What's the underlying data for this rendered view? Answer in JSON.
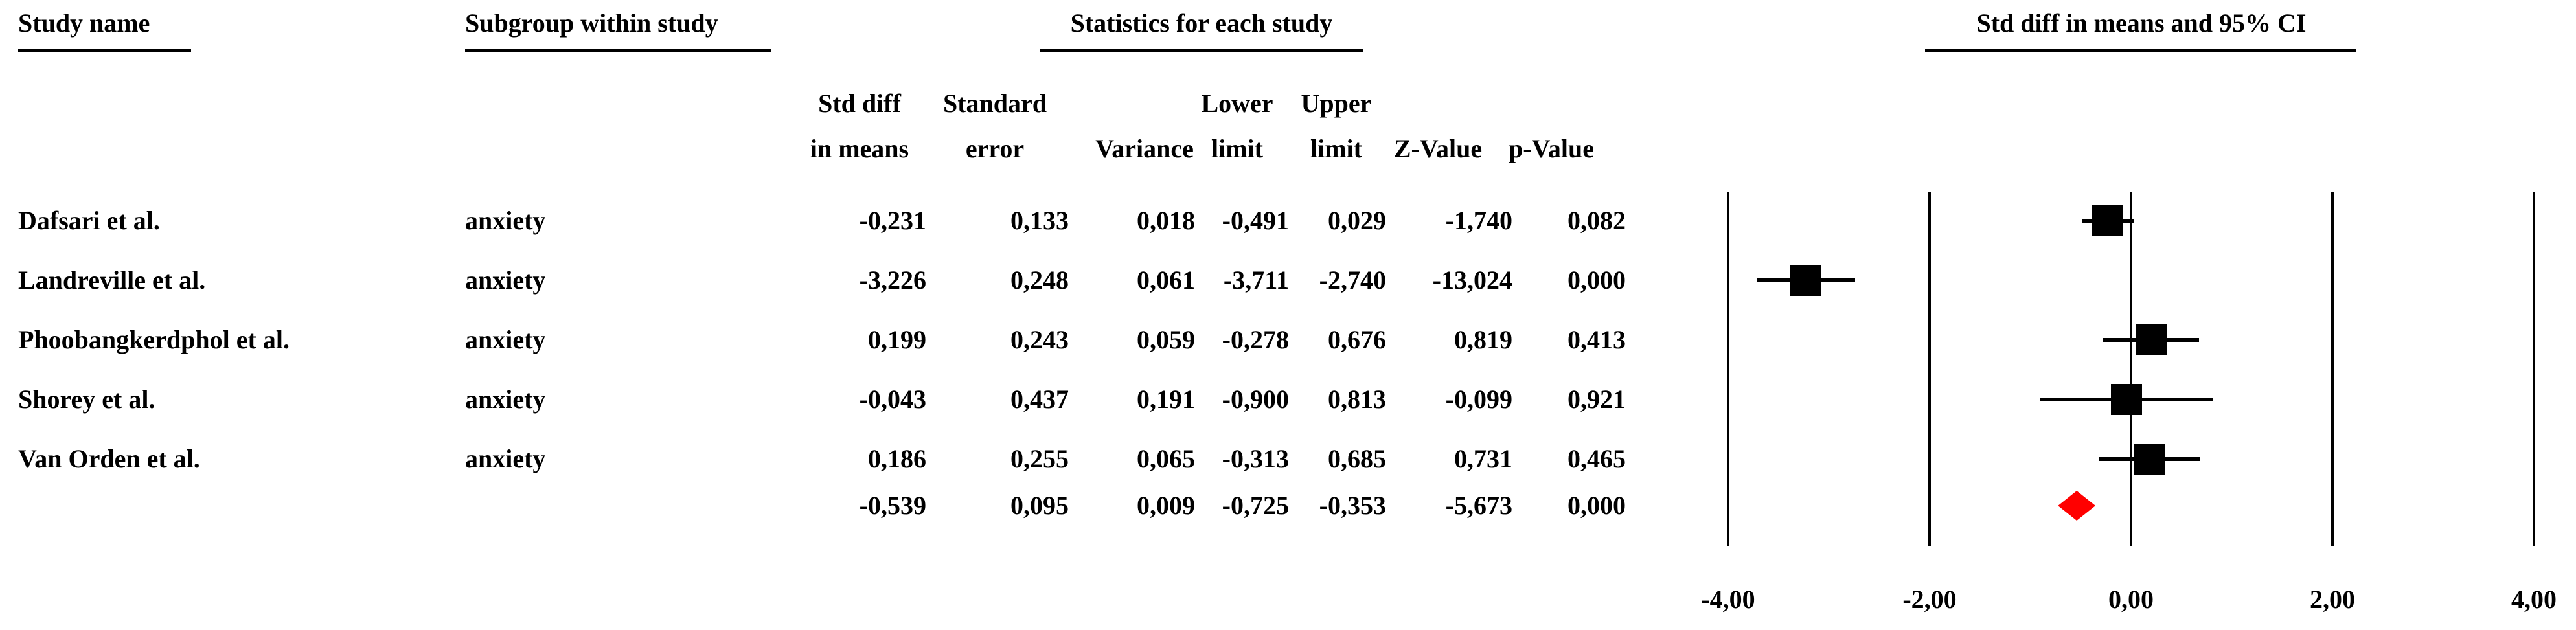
{
  "figure": {
    "section_headers": {
      "study": "Study name",
      "subgroup": "Subgroup within study",
      "statistics": "Statistics for each study",
      "ci": "Std diff in means and 95% CI"
    },
    "stat_columns": [
      {
        "line1": "Std diff",
        "line2": "in means"
      },
      {
        "line1": "Standard",
        "line2": "error"
      },
      {
        "line1": "",
        "line2": "Variance"
      },
      {
        "line1": "Lower",
        "line2": "limit"
      },
      {
        "line1": "Upper",
        "line2": "limit"
      },
      {
        "line1": "",
        "line2": "Z-Value"
      },
      {
        "line1": "",
        "line2": "p-Value"
      }
    ],
    "rows": [
      {
        "study": "Dafsari et al.",
        "subgroup": "anxiety",
        "std_diff": "-0,231",
        "std_err": "0,133",
        "variance": "0,018",
        "lower": "-0,491",
        "upper": "0,029",
        "z": "-1,740",
        "p": "0,082"
      },
      {
        "study": "Landreville et al.",
        "subgroup": "anxiety",
        "std_diff": "-3,226",
        "std_err": "0,248",
        "variance": "0,061",
        "lower": "-3,711",
        "upper": "-2,740",
        "z": "-13,024",
        "p": "0,000"
      },
      {
        "study": "Phoobangkerdphol et al.",
        "subgroup": "anxiety",
        "std_diff": "0,199",
        "std_err": "0,243",
        "variance": "0,059",
        "lower": "-0,278",
        "upper": "0,676",
        "z": "0,819",
        "p": "0,413"
      },
      {
        "study": "Shorey et al.",
        "subgroup": "anxiety",
        "std_diff": "-0,043",
        "std_err": "0,437",
        "variance": "0,191",
        "lower": "-0,900",
        "upper": "0,813",
        "z": "-0,099",
        "p": "0,921"
      },
      {
        "study": "Van Orden et al.",
        "subgroup": "anxiety",
        "std_diff": "0,186",
        "std_err": "0,255",
        "variance": "0,065",
        "lower": "-0,313",
        "upper": "0,685",
        "z": "0,731",
        "p": "0,465"
      }
    ],
    "summary_row": {
      "study": "",
      "subgroup": "",
      "std_diff": "-0,539",
      "std_err": "0,095",
      "variance": "0,009",
      "lower": "-0,725",
      "upper": "-0,353",
      "z": "-5,673",
      "p": "0,000"
    }
  },
  "chart_data": {
    "type": "forest",
    "title": "Std diff in means and 95% CI",
    "effect_measure": "Std diff in means",
    "xlim": [
      -4,
      4
    ],
    "tick_values": [
      -4,
      -2,
      0,
      2,
      4
    ],
    "tick_labels": [
      "-4,00",
      "-2,00",
      "0,00",
      "2,00",
      "4,00"
    ],
    "grid": true,
    "marker_color": "#000000",
    "summary_color": "#ff0000",
    "studies": [
      {
        "name": "Dafsari et al.",
        "subgroup": "anxiety",
        "est": -0.231,
        "lo": -0.491,
        "hi": 0.029
      },
      {
        "name": "Landreville et al.",
        "subgroup": "anxiety",
        "est": -3.226,
        "lo": -3.711,
        "hi": -2.74
      },
      {
        "name": "Phoobangkerdphol et al.",
        "subgroup": "anxiety",
        "est": 0.199,
        "lo": -0.278,
        "hi": 0.676
      },
      {
        "name": "Shorey et al.",
        "subgroup": "anxiety",
        "est": -0.043,
        "lo": -0.9,
        "hi": 0.813
      },
      {
        "name": "Van Orden et al.",
        "subgroup": "anxiety",
        "est": 0.186,
        "lo": -0.313,
        "hi": 0.685
      }
    ],
    "summary": {
      "est": -0.539,
      "lo": -0.725,
      "hi": -0.353
    }
  }
}
